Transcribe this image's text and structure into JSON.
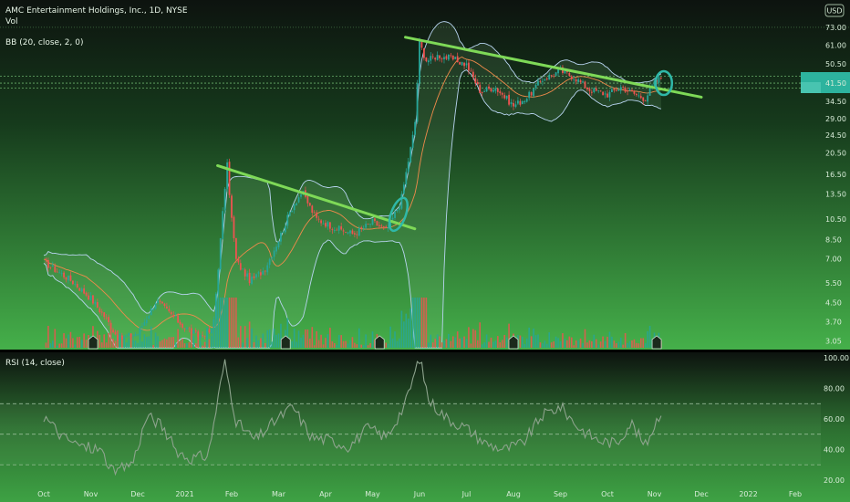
{
  "chart_data": [
    {
      "type": "candlestick",
      "title": "AMC Entertainment Holdings, Inc., 1D, NYSE",
      "legend": [
        "Vol",
        "BB (20, close, 2, 0)"
      ],
      "y_scale": "log",
      "ylim": [
        2.85,
        80
      ],
      "y_ticks": [
        "73.00",
        "61.00",
        "50.50",
        "41.50",
        "34.50",
        "29.00",
        "24.50",
        "20.50",
        "16.50",
        "13.50",
        "10.50",
        "8.50",
        "7.00",
        "5.50",
        "4.50",
        "3.70",
        "3.05"
      ],
      "y_tick_values": [
        73,
        61,
        50.5,
        41.5,
        34.5,
        29,
        24.5,
        20.5,
        16.5,
        13.5,
        10.5,
        8.5,
        7,
        5.5,
        4.5,
        3.7,
        3.05
      ],
      "months": [
        "Oct",
        "Nov",
        "Dec",
        "2021",
        "Feb",
        "Mar",
        "Apr",
        "May",
        "Jun",
        "Jul",
        "Aug",
        "Sep",
        "Oct",
        "Nov",
        "Dec",
        "2022",
        "Feb"
      ],
      "price_path": [
        {
          "m": 0.0,
          "p": 6.8
        },
        {
          "m": 0.6,
          "p": 5.6
        },
        {
          "m": 1.0,
          "p": 4.7
        },
        {
          "m": 1.3,
          "p": 3.9
        },
        {
          "m": 1.6,
          "p": 3.1
        },
        {
          "m": 2.0,
          "p": 3.3
        },
        {
          "m": 2.4,
          "p": 4.6
        },
        {
          "m": 2.7,
          "p": 4.0
        },
        {
          "m": 3.0,
          "p": 3.5
        },
        {
          "m": 3.3,
          "p": 3.2
        },
        {
          "m": 3.6,
          "p": 3.4
        },
        {
          "m": 3.9,
          "p": 18.5
        },
        {
          "m": 4.0,
          "p": 10.5
        },
        {
          "m": 4.1,
          "p": 6.8
        },
        {
          "m": 4.4,
          "p": 5.6
        },
        {
          "m": 4.7,
          "p": 6.3
        },
        {
          "m": 5.0,
          "p": 8.5
        },
        {
          "m": 5.3,
          "p": 12.0
        },
        {
          "m": 5.5,
          "p": 13.8
        },
        {
          "m": 5.8,
          "p": 10.5
        },
        {
          "m": 6.2,
          "p": 9.6
        },
        {
          "m": 6.6,
          "p": 9.0
        },
        {
          "m": 7.0,
          "p": 10.2
        },
        {
          "m": 7.3,
          "p": 9.3
        },
        {
          "m": 7.6,
          "p": 12.5
        },
        {
          "m": 7.9,
          "p": 27.0
        },
        {
          "m": 8.0,
          "p": 62.0
        },
        {
          "m": 8.15,
          "p": 52.0
        },
        {
          "m": 8.4,
          "p": 55.0
        },
        {
          "m": 8.7,
          "p": 53.0
        },
        {
          "m": 9.0,
          "p": 50.0
        },
        {
          "m": 9.3,
          "p": 38.0
        },
        {
          "m": 9.6,
          "p": 40.0
        },
        {
          "m": 10.0,
          "p": 33.0
        },
        {
          "m": 10.3,
          "p": 36.0
        },
        {
          "m": 10.6,
          "p": 43.0
        },
        {
          "m": 11.0,
          "p": 47.0
        },
        {
          "m": 11.3,
          "p": 44.0
        },
        {
          "m": 11.6,
          "p": 39.0
        },
        {
          "m": 12.0,
          "p": 37.0
        },
        {
          "m": 12.3,
          "p": 40.0
        },
        {
          "m": 12.6,
          "p": 37.0
        },
        {
          "m": 12.8,
          "p": 35.5
        },
        {
          "m": 13.0,
          "p": 41.5
        },
        {
          "m": 13.15,
          "p": 44.0
        }
      ],
      "trendlines": [
        {
          "from": {
            "m": 3.7,
            "p": 18.0
          },
          "to": {
            "m": 7.9,
            "p": 9.5
          }
        },
        {
          "from": {
            "m": 7.7,
            "p": 66.0
          },
          "to": {
            "m": 14.0,
            "p": 36.0
          }
        }
      ],
      "highlighted_levels": [
        44.5,
        41.5,
        39.5
      ],
      "colors": {
        "up": "#26a69a",
        "down": "#ef5350",
        "trend": "#7ed957",
        "circle": "#2fb8a8",
        "bb": "#b8d4f0",
        "ma": "#f08a4b"
      }
    },
    {
      "type": "line",
      "title": "RSI (14, close)",
      "ylim": [
        14,
        100
      ],
      "y_ticks": [
        "100.00",
        "80.00",
        "60.00",
        "40.00",
        "20.00"
      ],
      "y_tick_values": [
        100,
        80,
        60,
        40,
        20
      ],
      "bands": [
        70,
        50,
        30
      ],
      "series": [
        {
          "m": 0.0,
          "v": 62
        },
        {
          "m": 0.4,
          "v": 48
        },
        {
          "m": 0.8,
          "v": 42
        },
        {
          "m": 1.2,
          "v": 40
        },
        {
          "m": 1.5,
          "v": 24
        },
        {
          "m": 1.9,
          "v": 32
        },
        {
          "m": 2.2,
          "v": 62
        },
        {
          "m": 2.5,
          "v": 56
        },
        {
          "m": 2.8,
          "v": 40
        },
        {
          "m": 3.1,
          "v": 34
        },
        {
          "m": 3.5,
          "v": 36
        },
        {
          "m": 3.85,
          "v": 98
        },
        {
          "m": 4.1,
          "v": 58
        },
        {
          "m": 4.5,
          "v": 46
        },
        {
          "m": 4.9,
          "v": 58
        },
        {
          "m": 5.3,
          "v": 68
        },
        {
          "m": 5.7,
          "v": 48
        },
        {
          "m": 6.1,
          "v": 46
        },
        {
          "m": 6.5,
          "v": 42
        },
        {
          "m": 6.9,
          "v": 54
        },
        {
          "m": 7.3,
          "v": 48
        },
        {
          "m": 7.7,
          "v": 70
        },
        {
          "m": 8.0,
          "v": 100
        },
        {
          "m": 8.2,
          "v": 72
        },
        {
          "m": 8.6,
          "v": 60
        },
        {
          "m": 9.0,
          "v": 54
        },
        {
          "m": 9.4,
          "v": 44
        },
        {
          "m": 9.8,
          "v": 40
        },
        {
          "m": 10.2,
          "v": 44
        },
        {
          "m": 10.6,
          "v": 62
        },
        {
          "m": 11.0,
          "v": 68
        },
        {
          "m": 11.4,
          "v": 54
        },
        {
          "m": 11.8,
          "v": 46
        },
        {
          "m": 12.2,
          "v": 44
        },
        {
          "m": 12.5,
          "v": 58
        },
        {
          "m": 12.8,
          "v": 42
        },
        {
          "m": 13.15,
          "v": 66
        }
      ]
    }
  ],
  "header": {
    "symbol": "AMC Entertainment Holdings, Inc., 1D, NYSE",
    "vol_label": "Vol",
    "bb_label": "BB (20, close, 2, 0)",
    "rsi_label": "RSI (14, close)",
    "currency_badge": "USD"
  }
}
